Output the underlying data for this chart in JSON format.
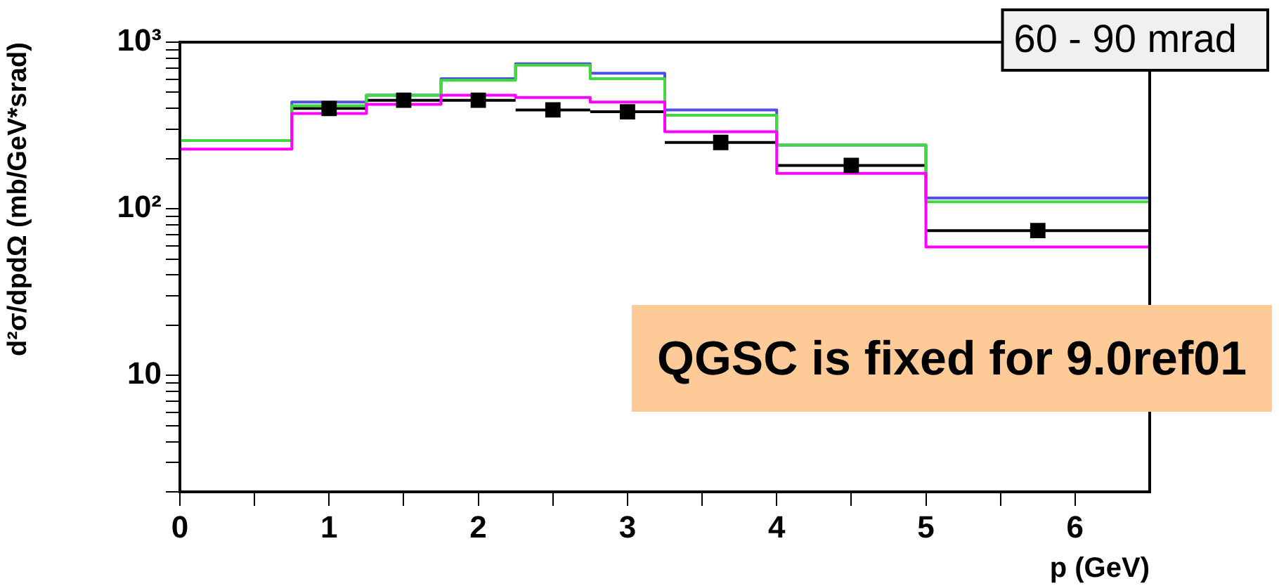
{
  "chart_data": {
    "type": "histogram",
    "title": "60 - 90 mrad",
    "xlabel": "p (GeV)",
    "ylabel": "d²σ/dpdΩ (mb/GeV*srad)",
    "bins": [
      0,
      0.75,
      1.25,
      1.75,
      2.25,
      2.75,
      3.25,
      4,
      5,
      6.5
    ],
    "series": [
      {
        "color": "#5050e0",
        "values": [
          257,
          437,
          480,
          603,
          741,
          650,
          392,
          241,
          116
        ]
      },
      {
        "color": "#40d840",
        "values": [
          257,
          415,
          480,
          590,
          728,
          603,
          364,
          241,
          110
        ]
      },
      {
        "color": "#ff00ff",
        "values": [
          228,
          373,
          423,
          480,
          465,
          437,
          290,
          163,
          59
        ]
      },
      {
        "type": "scatter",
        "color": "#000000",
        "marker": "square",
        "x": [
          1,
          1.5,
          2,
          2.5,
          3,
          3.625,
          4.5,
          5.75
        ],
        "values": [
          400,
          448,
          448,
          392,
          382,
          250,
          182,
          74
        ],
        "xerrors": [
          0.25,
          0.25,
          0.25,
          0.25,
          0.25,
          0.375,
          0.5,
          0.75
        ]
      }
    ],
    "log": "y",
    "grid": false,
    "legend": false,
    "xlim": [
      0,
      6.5
    ],
    "xticks": [
      0,
      {
        "value": 0.5,
        "label": null
      },
      1,
      {
        "value": 1.5,
        "label": null
      },
      2,
      {
        "value": 2.5,
        "label": null
      },
      3,
      {
        "value": 3.5,
        "label": null
      },
      4,
      {
        "value": 4.5,
        "label": null
      },
      5,
      {
        "value": 5.5,
        "label": null
      },
      6
    ],
    "ylim": [
      2,
      1000
    ],
    "yticks": [
      {
        "value": 2,
        "label": null
      },
      {
        "value": 3,
        "label": null
      },
      {
        "value": 4,
        "label": null
      },
      {
        "value": 5,
        "label": null
      },
      {
        "value": 6,
        "label": null
      },
      {
        "value": 7,
        "label": null
      },
      {
        "value": 8,
        "label": null
      },
      {
        "value": 9,
        "label": null
      },
      10,
      {
        "value": 20,
        "label": null
      },
      {
        "value": 30,
        "label": null
      },
      {
        "value": 40,
        "label": null
      },
      {
        "value": 50,
        "label": null
      },
      {
        "value": 60,
        "label": null
      },
      {
        "value": 70,
        "label": null
      },
      {
        "value": 80,
        "label": null
      },
      {
        "value": 90,
        "label": null
      },
      {
        "value": 100,
        "label": "10²"
      },
      {
        "value": 200,
        "label": null
      },
      {
        "value": 300,
        "label": null
      },
      {
        "value": 400,
        "label": null
      },
      {
        "value": 500,
        "label": null
      },
      {
        "value": 600,
        "label": null
      },
      {
        "value": 700,
        "label": null
      },
      {
        "value": 800,
        "label": null
      },
      {
        "value": 900,
        "label": null
      },
      {
        "value": 1000,
        "label": "10³"
      }
    ],
    "annotations": [
      "QGSC is fixed for 9.0ref01"
    ]
  }
}
